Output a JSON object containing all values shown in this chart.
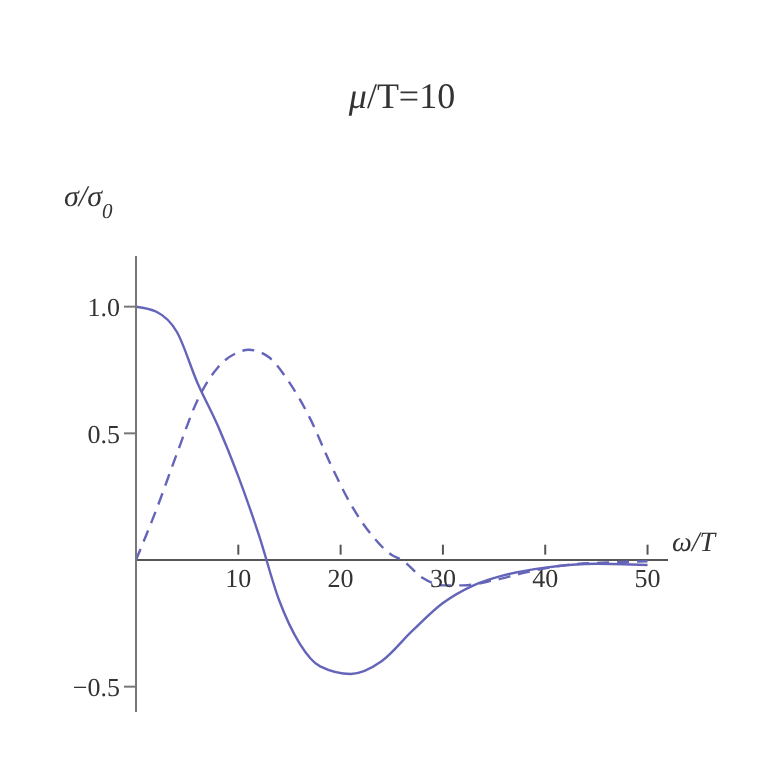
{
  "chart_data": {
    "type": "line",
    "title": "μ/T=10",
    "xlabel": "ω/T",
    "ylabel": "σ/σ$_{0}$",
    "xlim": [
      0,
      52
    ],
    "xticks": [
      10,
      20,
      30,
      40,
      50
    ],
    "ylim": [
      -0.6,
      1.2
    ],
    "yticks": [
      {
        "value": -0.5,
        "label": "−0.5"
      },
      0.5,
      {
        "value": 1,
        "label": "1.0"
      }
    ],
    "marker": "none",
    "series": [
      {
        "color": "#6464b9",
        "line_style": "solid",
        "x": [
          0,
          2,
          4,
          6,
          8,
          10,
          12,
          14,
          16,
          18,
          21,
          24,
          27,
          30,
          33,
          36,
          40,
          45,
          50
        ],
        "values": [
          1.0,
          0.98,
          0.9,
          0.7,
          0.53,
          0.33,
          0.1,
          -0.16,
          -0.33,
          -0.42,
          -0.45,
          -0.4,
          -0.28,
          -0.17,
          -0.1,
          -0.06,
          -0.03,
          -0.015,
          -0.02
        ]
      },
      {
        "color": "#6464b9",
        "line_style": "dashed",
        "x": [
          0,
          2,
          4,
          6,
          8,
          10,
          11,
          13,
          15,
          17,
          19,
          21,
          23,
          25,
          26,
          28,
          30,
          32,
          35,
          38,
          42,
          46,
          50
        ],
        "values": [
          0,
          0.2,
          0.42,
          0.63,
          0.76,
          0.82,
          0.83,
          0.8,
          0.7,
          0.56,
          0.38,
          0.22,
          0.1,
          0.02,
          0,
          -0.07,
          -0.1,
          -0.1,
          -0.08,
          -0.05,
          -0.02,
          -0.01,
          -0.005
        ]
      }
    ]
  }
}
